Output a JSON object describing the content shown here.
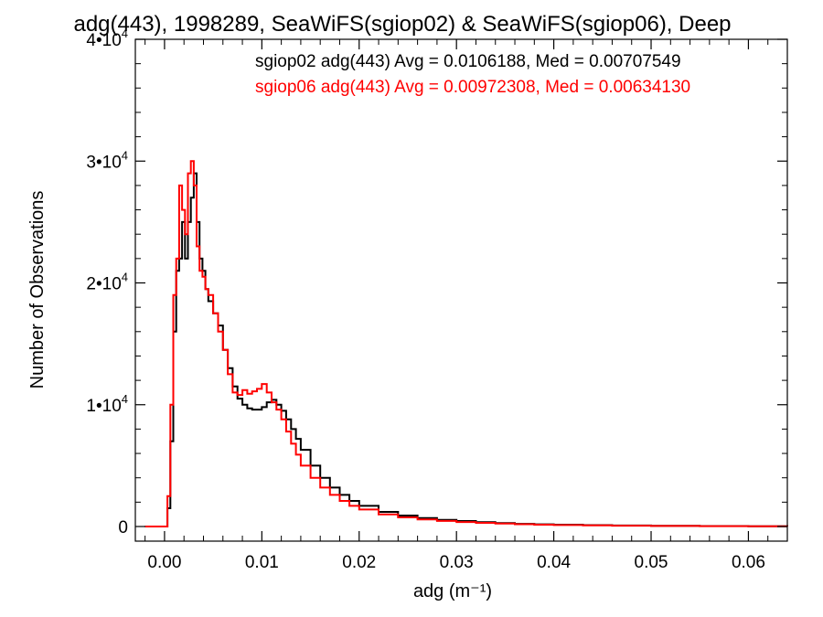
{
  "chart_data": {
    "type": "line",
    "title": "adg(443), 1998289, SeaWiFS(sgiop02) & SeaWiFS(sgiop06), Deep",
    "xlabel": "adg (m⁻¹)",
    "ylabel": "Number of Observations",
    "xlim": [
      -0.003,
      0.064
    ],
    "ylim": [
      -1200,
      40000
    ],
    "x_ticks": [
      0.0,
      0.01,
      0.02,
      0.03,
      0.04,
      0.05,
      0.06
    ],
    "x_tick_labels": [
      "0.00",
      "0.01",
      "0.02",
      "0.03",
      "0.04",
      "0.05",
      "0.06"
    ],
    "y_ticks": [
      0,
      10000,
      20000,
      30000,
      40000
    ],
    "y_tick_labels": [
      {
        "mantissa": "0",
        "exponent": ""
      },
      {
        "mantissa": "1•10",
        "exponent": "4"
      },
      {
        "mantissa": "2•10",
        "exponent": "4"
      },
      {
        "mantissa": "3•10",
        "exponent": "4"
      },
      {
        "mantissa": "4•10",
        "exponent": "4"
      }
    ],
    "grid": false,
    "legend_position": "top-right",
    "series": [
      {
        "name": "sgiop02 adg(443) Avg = 0.0106188, Med = 0.00707549",
        "color": "#000000",
        "x": [
          -0.002,
          0.0,
          0.0003,
          0.0006,
          0.0009,
          0.0012,
          0.0015,
          0.0018,
          0.0021,
          0.0024,
          0.0027,
          0.003,
          0.0033,
          0.0036,
          0.0039,
          0.0042,
          0.0045,
          0.005,
          0.0055,
          0.006,
          0.0065,
          0.007,
          0.0075,
          0.008,
          0.0085,
          0.009,
          0.0095,
          0.01,
          0.0105,
          0.011,
          0.0115,
          0.012,
          0.0125,
          0.013,
          0.0135,
          0.014,
          0.015,
          0.016,
          0.017,
          0.018,
          0.019,
          0.02,
          0.022,
          0.024,
          0.026,
          0.028,
          0.03,
          0.032,
          0.034,
          0.036,
          0.038,
          0.04,
          0.043,
          0.046,
          0.05,
          0.055,
          0.06,
          0.064
        ],
        "y": [
          0,
          0,
          1500,
          7000,
          16000,
          21000,
          22000,
          25000,
          22000,
          25000,
          27000,
          29000,
          25000,
          22000,
          21000,
          19500,
          18500,
          17500,
          16500,
          14500,
          13000,
          11500,
          10500,
          10000,
          9700,
          9600,
          9600,
          9800,
          10200,
          10400,
          10000,
          9500,
          8800,
          8000,
          7200,
          6300,
          5000,
          4000,
          3200,
          2600,
          2100,
          1700,
          1200,
          900,
          700,
          550,
          450,
          350,
          280,
          220,
          180,
          150,
          110,
          80,
          55,
          35,
          20,
          10
        ]
      },
      {
        "name": "sgiop06 adg(443) Avg = 0.00972308, Med = 0.00634130",
        "color": "#ff0000",
        "x": [
          -0.002,
          0.0,
          0.0003,
          0.0006,
          0.0009,
          0.0012,
          0.0015,
          0.0018,
          0.0021,
          0.0024,
          0.0027,
          0.003,
          0.0033,
          0.0036,
          0.0039,
          0.0042,
          0.0045,
          0.005,
          0.0055,
          0.006,
          0.0065,
          0.007,
          0.0075,
          0.008,
          0.0085,
          0.009,
          0.0095,
          0.01,
          0.0105,
          0.011,
          0.0115,
          0.012,
          0.0125,
          0.013,
          0.0135,
          0.014,
          0.015,
          0.016,
          0.017,
          0.018,
          0.019,
          0.02,
          0.022,
          0.024,
          0.026,
          0.028,
          0.03,
          0.032,
          0.034,
          0.036,
          0.038,
          0.04,
          0.043,
          0.046,
          0.05,
          0.055,
          0.06,
          0.064
        ],
        "y": [
          0,
          0,
          2500,
          10000,
          19000,
          22000,
          28000,
          26000,
          24000,
          29000,
          30000,
          28000,
          23000,
          21000,
          20500,
          19500,
          19000,
          17500,
          16000,
          14500,
          12500,
          11000,
          10800,
          11200,
          10900,
          11100,
          11300,
          11700,
          11000,
          10200,
          9600,
          8800,
          7800,
          6800,
          5900,
          5000,
          4000,
          3200,
          2600,
          2100,
          1700,
          1400,
          1000,
          750,
          580,
          460,
          370,
          300,
          240,
          190,
          150,
          120,
          90,
          65,
          45,
          28,
          15,
          8
        ]
      }
    ]
  }
}
